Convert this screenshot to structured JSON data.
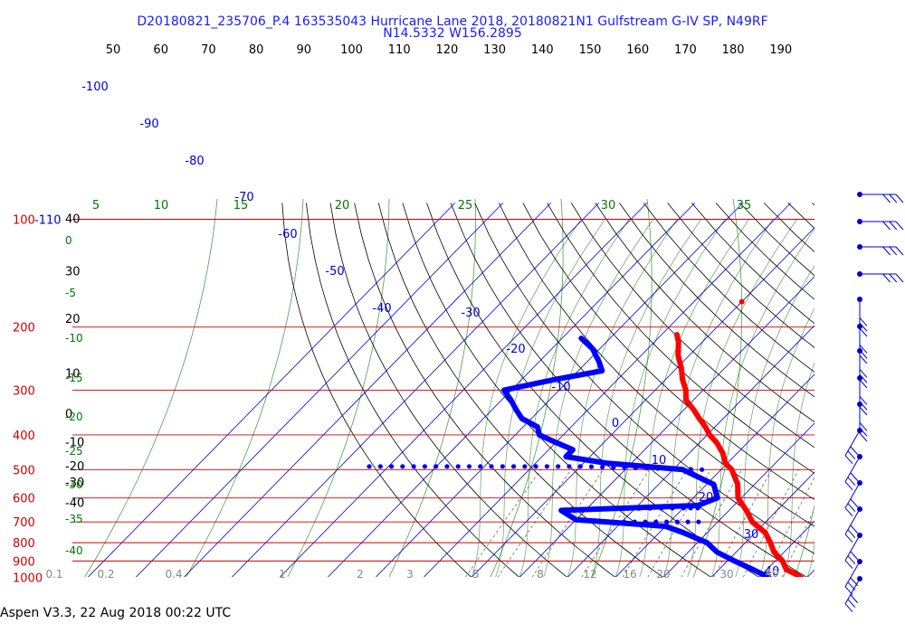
{
  "header": {
    "line1": "D20180821_235706_P.4 163535043 Hurricane Lane 2018, 20180821N1 Gulfstream G-IV SP, N49RF",
    "line2": "N14.5332 W156.2895"
  },
  "footer": {
    "text": "Aspen V3.3, 22 Aug 2018  00:22 UTC"
  },
  "colors": {
    "temperature": "#ff0000",
    "dewpoint": "#0000ff",
    "isobar": "#cc0000",
    "isotherm": "#0000cc",
    "dry_adiabat": "#000000",
    "moist_adiabat": "#007700",
    "mixing_ratio": "#007700"
  },
  "chart_data": {
    "type": "skew-t log-p sounding",
    "top_temperature_labels": [
      "50",
      "60",
      "70",
      "80",
      "90",
      "100",
      "110",
      "120",
      "130",
      "140",
      "150",
      "160",
      "170",
      "180",
      "190"
    ],
    "left_temperature_labels": [
      "40",
      "30",
      "20",
      "10",
      "0",
      "-10",
      "-20",
      "-30",
      "-40"
    ],
    "pressure_labels": [
      "100",
      "200",
      "300",
      "400",
      "500",
      "600",
      "700",
      "800",
      "900",
      "1000"
    ],
    "pressure_corner_label": "-110",
    "isotherm_labels": [
      "-100",
      "-90",
      "-80",
      "-70",
      "-60",
      "-50",
      "-40",
      "-30",
      "-20",
      "-10",
      "0",
      "10",
      "20",
      "30",
      "40"
    ],
    "theta_e_labels": [
      "5",
      "10",
      "15",
      "20",
      "25",
      "30",
      "35"
    ],
    "left_green_labels": [
      "0",
      "-5",
      "-10",
      "-15",
      "-20",
      "-25",
      "-30",
      "-35",
      "-40"
    ],
    "mixing_ratio_labels": [
      "0.1",
      "0.2",
      "0.4",
      "1",
      "2",
      "3",
      "5",
      "8",
      "12",
      "16",
      "20",
      "30"
    ],
    "temperature_profile": [
      [
        210,
        -46.8
      ],
      [
        220,
        -45.0
      ],
      [
        240,
        -42.3
      ],
      [
        260,
        -39.1
      ],
      [
        280,
        -36.5
      ],
      [
        300,
        -33.6
      ],
      [
        320,
        -31.5
      ],
      [
        340,
        -28.0
      ],
      [
        360,
        -25.0
      ],
      [
        380,
        -22.0
      ],
      [
        400,
        -19.5
      ],
      [
        420,
        -16.5
      ],
      [
        450,
        -13.0
      ],
      [
        480,
        -10.4
      ],
      [
        500,
        -7.8
      ],
      [
        550,
        -3.5
      ],
      [
        600,
        -0.7
      ],
      [
        650,
        3.6
      ],
      [
        700,
        7.2
      ],
      [
        750,
        12.1
      ],
      [
        800,
        15.2
      ],
      [
        850,
        17.9
      ],
      [
        900,
        21.5
      ],
      [
        950,
        24.0
      ],
      [
        980,
        27.0
      ],
      [
        1005,
        29.0
      ]
    ],
    "dewpoint_profile": [
      [
        215,
        -66.0
      ],
      [
        230,
        -61.5
      ],
      [
        250,
        -57.5
      ],
      [
        265,
        -55.0
      ],
      [
        280,
        -63.0
      ],
      [
        300,
        -71.5
      ],
      [
        320,
        -68.0
      ],
      [
        340,
        -65.0
      ],
      [
        360,
        -62.0
      ],
      [
        380,
        -57.0
      ],
      [
        400,
        -55.0
      ],
      [
        420,
        -50.0
      ],
      [
        440,
        -45.0
      ],
      [
        460,
        -45.0
      ],
      [
        480,
        -35.0
      ],
      [
        500,
        -18.0
      ],
      [
        550,
        -8.5
      ],
      [
        600,
        -5.0
      ],
      [
        630,
        -7.5
      ],
      [
        650,
        -35.0
      ],
      [
        690,
        -30.0
      ],
      [
        700,
        -23.0
      ],
      [
        720,
        -10.0
      ],
      [
        750,
        -5.0
      ],
      [
        800,
        2.0
      ],
      [
        850,
        6.0
      ],
      [
        900,
        11.5
      ],
      [
        950,
        17.0
      ],
      [
        1000,
        22.0
      ]
    ],
    "dewpoint_dotted_segments": [
      [
        [
          490,
          -84.0
        ],
        [
          490,
          -40.0
        ],
        [
          500,
          -14.0
        ]
      ],
      [
        [
          645,
          -33.0
        ],
        [
          640,
          -10.0
        ],
        [
          640,
          -7.0
        ]
      ],
      [
        [
          700,
          -24.0
        ],
        [
          700,
          -4.0
        ]
      ]
    ]
  }
}
